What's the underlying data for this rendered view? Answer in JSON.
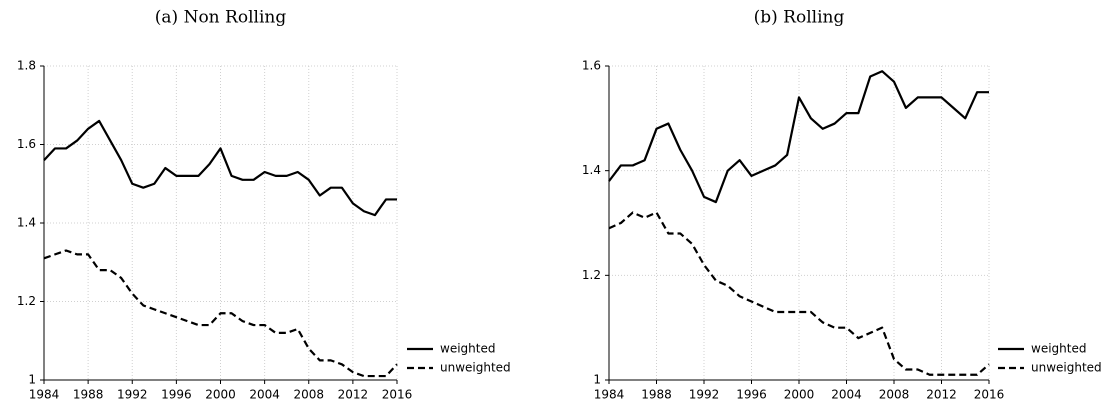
{
  "chart_data": [
    {
      "type": "line",
      "title": "(a) Non Rolling",
      "x": [
        1984,
        1985,
        1986,
        1987,
        1988,
        1989,
        1990,
        1991,
        1992,
        1993,
        1994,
        1995,
        1996,
        1997,
        1998,
        1999,
        2000,
        2001,
        2002,
        2003,
        2004,
        2005,
        2006,
        2007,
        2008,
        2009,
        2010,
        2011,
        2012,
        2013,
        2014,
        2015,
        2016
      ],
      "xlim": [
        1984,
        2016
      ],
      "xticks": [
        1984,
        1988,
        1992,
        1996,
        2000,
        2004,
        2008,
        2012,
        2016
      ],
      "ylim": [
        1,
        1.8
      ],
      "yticks": [
        1,
        1.2,
        1.4,
        1.6,
        1.8
      ],
      "grid": true,
      "legend": "lower-right-outside",
      "series": [
        {
          "name": "weighted",
          "color": "#000000",
          "linestyle": "solid",
          "values": [
            1.56,
            1.59,
            1.59,
            1.61,
            1.64,
            1.66,
            1.61,
            1.56,
            1.5,
            1.49,
            1.5,
            1.54,
            1.52,
            1.52,
            1.52,
            1.55,
            1.59,
            1.52,
            1.51,
            1.51,
            1.53,
            1.52,
            1.52,
            1.53,
            1.51,
            1.47,
            1.49,
            1.49,
            1.45,
            1.43,
            1.42,
            1.46,
            1.46
          ]
        },
        {
          "name": "unweighted",
          "color": "#000000",
          "linestyle": "dashed",
          "values": [
            1.31,
            1.32,
            1.33,
            1.32,
            1.32,
            1.28,
            1.28,
            1.26,
            1.22,
            1.19,
            1.18,
            1.17,
            1.16,
            1.15,
            1.14,
            1.14,
            1.17,
            1.17,
            1.15,
            1.14,
            1.14,
            1.12,
            1.12,
            1.13,
            1.08,
            1.05,
            1.05,
            1.04,
            1.02,
            1.01,
            1.01,
            1.01,
            1.04
          ]
        }
      ]
    },
    {
      "type": "line",
      "title": "(b) Rolling",
      "x": [
        1984,
        1985,
        1986,
        1987,
        1988,
        1989,
        1990,
        1991,
        1992,
        1993,
        1994,
        1995,
        1996,
        1997,
        1998,
        1999,
        2000,
        2001,
        2002,
        2003,
        2004,
        2005,
        2006,
        2007,
        2008,
        2009,
        2010,
        2011,
        2012,
        2013,
        2014,
        2015,
        2016
      ],
      "xlim": [
        1984,
        2016
      ],
      "xticks": [
        1984,
        1988,
        1992,
        1996,
        2000,
        2004,
        2008,
        2012,
        2016
      ],
      "ylim": [
        1,
        1.6
      ],
      "yticks": [
        1,
        1.2,
        1.4,
        1.6
      ],
      "grid": true,
      "legend": "lower-right-outside",
      "series": [
        {
          "name": "weighted",
          "color": "#000000",
          "linestyle": "solid",
          "values": [
            1.38,
            1.41,
            1.41,
            1.42,
            1.48,
            1.49,
            1.44,
            1.4,
            1.35,
            1.34,
            1.4,
            1.42,
            1.39,
            1.4,
            1.41,
            1.43,
            1.54,
            1.5,
            1.48,
            1.49,
            1.51,
            1.51,
            1.58,
            1.59,
            1.57,
            1.52,
            1.54,
            1.54,
            1.54,
            1.52,
            1.5,
            1.55,
            1.55
          ]
        },
        {
          "name": "unweighted",
          "color": "#000000",
          "linestyle": "dashed",
          "values": [
            1.29,
            1.3,
            1.32,
            1.31,
            1.32,
            1.28,
            1.28,
            1.26,
            1.22,
            1.19,
            1.18,
            1.16,
            1.15,
            1.14,
            1.13,
            1.13,
            1.13,
            1.13,
            1.11,
            1.1,
            1.1,
            1.08,
            1.09,
            1.1,
            1.04,
            1.02,
            1.02,
            1.01,
            1.01,
            1.01,
            1.01,
            1.01,
            1.03
          ]
        }
      ]
    }
  ]
}
